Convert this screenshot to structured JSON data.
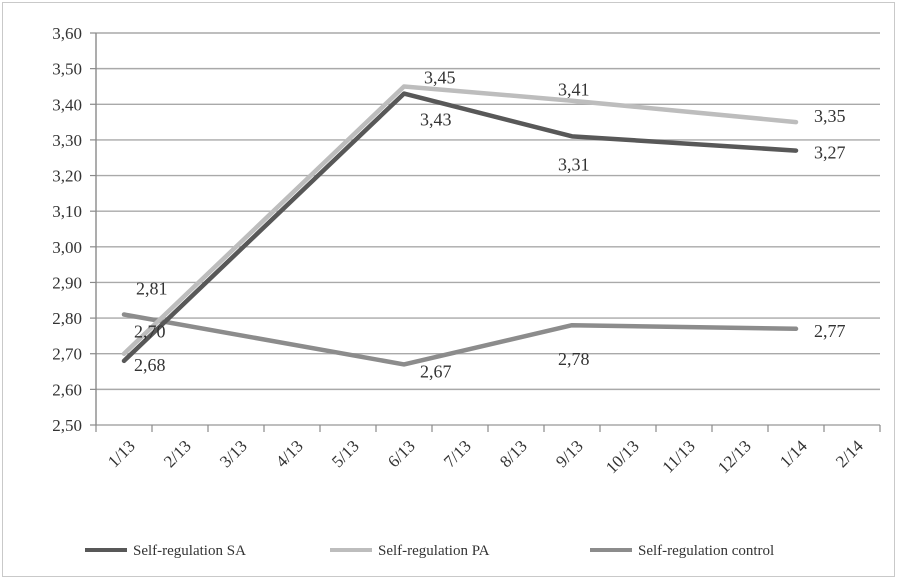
{
  "chart_data": {
    "type": "line",
    "categories": [
      "1/13",
      "2/13",
      "3/13",
      "4/13",
      "5/13",
      "6/13",
      "7/13",
      "8/13",
      "9/13",
      "10/13",
      "11/13",
      "12/13",
      "1/14",
      "2/14"
    ],
    "y_ticks": [
      "2,50",
      "2,60",
      "2,70",
      "2,80",
      "2,90",
      "3,00",
      "3,10",
      "3,20",
      "3,30",
      "3,40",
      "3,50",
      "3,60"
    ],
    "ylim": [
      2.5,
      3.6
    ],
    "grid": true,
    "legend_position": "bottom",
    "series": [
      {
        "name": "Self-regulation SA",
        "color": "#585858",
        "points": [
          {
            "category": "1/13",
            "value": 2.68,
            "label": "2,68"
          },
          {
            "category": "6/13",
            "value": 3.43,
            "label": "3,43"
          },
          {
            "category": "9/13",
            "value": 3.31,
            "label": "3,31"
          },
          {
            "category": "1/14",
            "value": 3.27,
            "label": "3,27"
          }
        ]
      },
      {
        "name": "Self-regulation PA",
        "color": "#bdbdbd",
        "points": [
          {
            "category": "1/13",
            "value": 2.7,
            "label": "2,70"
          },
          {
            "category": "6/13",
            "value": 3.45,
            "label": "3,45"
          },
          {
            "category": "9/13",
            "value": 3.41,
            "label": "3,41"
          },
          {
            "category": "1/14",
            "value": 3.35,
            "label": "3,35"
          }
        ]
      },
      {
        "name": "Self-regulation control",
        "color": "#8c8c8c",
        "points": [
          {
            "category": "1/13",
            "value": 2.81,
            "label": "2,81"
          },
          {
            "category": "6/13",
            "value": 2.67,
            "label": "2,67"
          },
          {
            "category": "9/13",
            "value": 2.78,
            "label": "2,78"
          },
          {
            "category": "1/14",
            "value": 2.77,
            "label": "2,77"
          }
        ]
      }
    ]
  }
}
